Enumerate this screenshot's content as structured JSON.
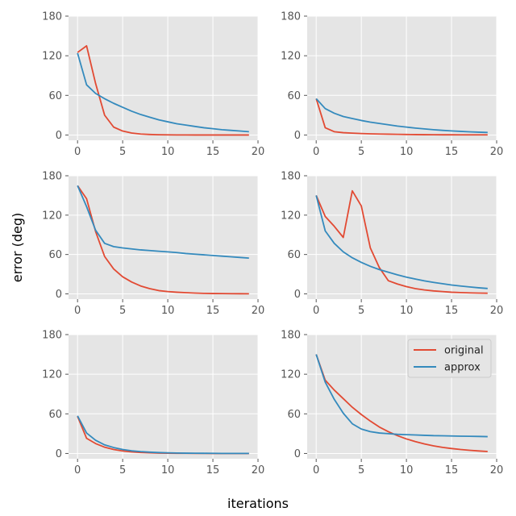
{
  "figure": {
    "xlabel": "iterations",
    "ylabel": "error (deg)"
  },
  "colors": {
    "original": "#E24A33",
    "approx": "#348ABD",
    "panel_bg": "#E5E5E5",
    "grid": "#FFFFFF"
  },
  "legend": {
    "placement": "top-right of bottom-right panel",
    "entries": [
      "original",
      "approx"
    ]
  },
  "chart_data": [
    {
      "type": "line",
      "xlim": [
        -1,
        20
      ],
      "ylim": [
        -8,
        180
      ],
      "xticks": [
        0,
        5,
        10,
        15,
        20
      ],
      "yticks": [
        0,
        60,
        120,
        180
      ],
      "x": [
        0,
        1,
        2,
        3,
        4,
        5,
        6,
        7,
        8,
        9,
        10,
        11,
        12,
        13,
        14,
        15,
        16,
        17,
        18,
        19
      ],
      "series": [
        {
          "name": "original",
          "values": [
            125,
            135,
            78,
            30,
            12,
            6,
            3,
            1.5,
            0.8,
            0.4,
            0.2,
            0.1,
            0.1,
            0,
            0,
            0,
            0,
            0,
            0,
            0
          ]
        },
        {
          "name": "approx",
          "values": [
            124,
            76,
            63,
            55,
            48,
            42,
            36,
            31,
            27,
            23,
            20,
            17,
            15,
            13,
            11,
            9.5,
            8,
            7,
            6,
            5
          ]
        }
      ]
    },
    {
      "type": "line",
      "xlim": [
        -1,
        20
      ],
      "ylim": [
        -8,
        180
      ],
      "xticks": [
        0,
        5,
        10,
        15,
        20
      ],
      "yticks": [
        0,
        60,
        120,
        180
      ],
      "x": [
        0,
        1,
        2,
        3,
        4,
        5,
        6,
        7,
        8,
        9,
        10,
        11,
        12,
        13,
        14,
        15,
        16,
        17,
        18,
        19
      ],
      "series": [
        {
          "name": "original",
          "values": [
            55,
            11,
            5,
            3.5,
            2.8,
            2.2,
            1.8,
            1.5,
            1.2,
            1,
            0.8,
            0.6,
            0.5,
            0.4,
            0.3,
            0.3,
            0.2,
            0.2,
            0.2,
            0.2
          ]
        },
        {
          "name": "approx",
          "values": [
            55,
            40,
            33,
            28,
            25,
            22,
            19.5,
            17.5,
            15.5,
            13.5,
            12,
            10.5,
            9.2,
            8,
            7,
            6.2,
            5.5,
            4.8,
            4.3,
            3.8
          ]
        }
      ]
    },
    {
      "type": "line",
      "xlim": [
        -1,
        20
      ],
      "ylim": [
        -8,
        180
      ],
      "xticks": [
        0,
        5,
        10,
        15,
        20
      ],
      "yticks": [
        0,
        60,
        120,
        180
      ],
      "x": [
        0,
        1,
        2,
        3,
        4,
        5,
        6,
        7,
        8,
        9,
        10,
        11,
        12,
        13,
        14,
        15,
        16,
        17,
        18,
        19
      ],
      "series": [
        {
          "name": "original",
          "values": [
            165,
            145,
            95,
            57,
            38,
            26,
            18,
            12,
            8,
            5,
            3.5,
            2.5,
            1.8,
            1.2,
            0.8,
            0.5,
            0.4,
            0.3,
            0.2,
            0.1
          ]
        },
        {
          "name": "approx",
          "values": [
            165,
            133,
            97,
            77,
            72,
            70,
            68.5,
            67,
            66,
            65,
            64,
            63,
            61.5,
            60.5,
            59.5,
            58.5,
            57.5,
            56.5,
            55.5,
            54.5
          ]
        }
      ]
    },
    {
      "type": "line",
      "xlim": [
        -1,
        20
      ],
      "ylim": [
        -8,
        180
      ],
      "xticks": [
        0,
        5,
        10,
        15,
        20
      ],
      "yticks": [
        0,
        60,
        120,
        180
      ],
      "x": [
        0,
        1,
        2,
        3,
        4,
        5,
        6,
        7,
        8,
        9,
        10,
        11,
        12,
        13,
        14,
        15,
        16,
        17,
        18,
        19
      ],
      "series": [
        {
          "name": "original",
          "values": [
            150,
            118,
            103,
            86,
            157,
            134,
            70,
            40,
            20,
            15,
            11,
            8,
            6,
            4.5,
            3.5,
            2.5,
            2,
            1.5,
            1.2,
            1
          ]
        },
        {
          "name": "approx",
          "values": [
            150,
            96,
            77,
            64,
            55,
            48,
            42,
            37,
            33,
            29,
            25.5,
            22.5,
            19.8,
            17.5,
            15.5,
            13.5,
            12,
            10.6,
            9.3,
            8.2
          ]
        }
      ]
    },
    {
      "type": "line",
      "xlim": [
        -1,
        20
      ],
      "ylim": [
        -8,
        180
      ],
      "xticks": [
        0,
        5,
        10,
        15,
        20
      ],
      "yticks": [
        0,
        60,
        120,
        180
      ],
      "x": [
        0,
        1,
        2,
        3,
        4,
        5,
        6,
        7,
        8,
        9,
        10,
        11,
        12,
        13,
        14,
        15,
        16,
        17,
        18,
        19
      ],
      "series": [
        {
          "name": "original",
          "values": [
            56,
            23,
            15,
            9.5,
            6,
            3.8,
            2.4,
            1.5,
            1,
            0.6,
            0.4,
            0.3,
            0.2,
            0.1,
            0.1,
            0,
            0,
            0,
            0,
            0
          ]
        },
        {
          "name": "approx",
          "values": [
            57,
            31,
            20,
            13,
            9,
            6,
            4,
            2.8,
            2,
            1.4,
            1,
            0.7,
            0.5,
            0.4,
            0.3,
            0.2,
            0.1,
            0.1,
            0.1,
            0.1
          ]
        }
      ]
    },
    {
      "type": "line",
      "xlim": [
        -1,
        20
      ],
      "ylim": [
        -8,
        180
      ],
      "xticks": [
        0,
        5,
        10,
        15,
        20
      ],
      "yticks": [
        0,
        60,
        120,
        180
      ],
      "x": [
        0,
        1,
        2,
        3,
        4,
        5,
        6,
        7,
        8,
        9,
        10,
        11,
        12,
        13,
        14,
        15,
        16,
        17,
        18,
        19
      ],
      "series": [
        {
          "name": "original",
          "values": [
            150,
            111,
            96,
            83,
            70,
            59,
            49,
            40,
            33,
            27,
            22,
            18,
            14.5,
            11.5,
            9.3,
            7.5,
            6,
            4.8,
            3.8,
            3
          ]
        },
        {
          "name": "approx",
          "values": [
            150,
            108,
            82,
            61,
            45,
            37,
            33,
            31,
            30,
            29,
            28.5,
            28,
            27.5,
            27,
            26.8,
            26.5,
            26.2,
            26,
            25.8,
            25.5
          ]
        }
      ]
    }
  ]
}
